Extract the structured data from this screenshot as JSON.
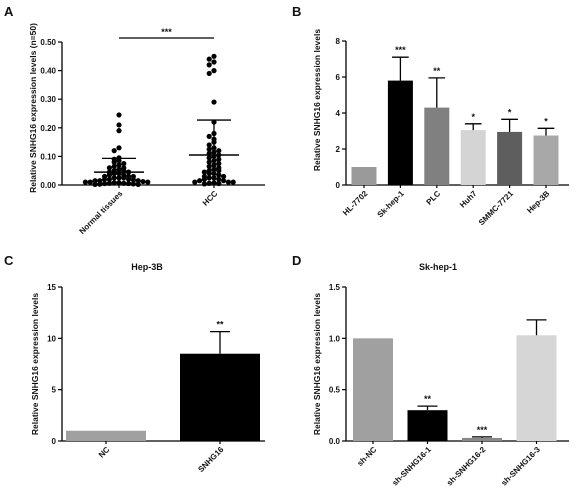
{
  "figure": {
    "panels": [
      "A",
      "B",
      "C",
      "D"
    ]
  },
  "chart_data": [
    {
      "type": "scatter",
      "panel": "A",
      "title": "",
      "ylabel": "Relative SNHG16 expression levels (n=50)",
      "ylim": [
        0,
        0.5
      ],
      "yticks": [
        "0.00",
        "0.10",
        "0.20",
        "0.30",
        "0.40",
        "0.50"
      ],
      "ytick_values": [
        0,
        0.1,
        0.2,
        0.3,
        0.4,
        0.5
      ],
      "categories": [
        "Normal tissues",
        "HCC"
      ],
      "summary": [
        {
          "mean": 0.045,
          "sd": 0.048
        },
        {
          "mean": 0.105,
          "sd": 0.122
        }
      ],
      "points": [
        [
          0.245,
          0.21,
          0.19,
          0.13,
          0.12,
          0.095,
          0.09,
          0.085,
          0.08,
          0.075,
          0.07,
          0.065,
          0.06,
          0.06,
          0.055,
          0.05,
          0.05,
          0.045,
          0.045,
          0.04,
          0.04,
          0.035,
          0.035,
          0.03,
          0.03,
          0.03,
          0.025,
          0.025,
          0.025,
          0.02,
          0.02,
          0.02,
          0.018,
          0.015,
          0.015,
          0.015,
          0.012,
          0.01,
          0.01,
          0.01,
          0.008,
          0.008,
          0.006,
          0.006,
          0.005,
          0.005,
          0.004,
          0.003,
          0.002,
          0.002
        ],
        [
          0.45,
          0.44,
          0.43,
          0.42,
          0.4,
          0.39,
          0.29,
          0.22,
          0.18,
          0.17,
          0.16,
          0.15,
          0.14,
          0.13,
          0.125,
          0.12,
          0.115,
          0.11,
          0.105,
          0.1,
          0.095,
          0.09,
          0.085,
          0.08,
          0.075,
          0.07,
          0.065,
          0.06,
          0.055,
          0.05,
          0.05,
          0.045,
          0.04,
          0.04,
          0.035,
          0.03,
          0.03,
          0.025,
          0.025,
          0.02,
          0.02,
          0.015,
          0.015,
          0.01,
          0.01,
          0.01,
          0.008,
          0.006,
          0.005,
          0.004
        ]
      ],
      "significance": "***"
    },
    {
      "type": "bar",
      "panel": "B",
      "title": "",
      "ylabel": "Relative SNHG16 expression levels",
      "ylim": [
        0,
        8
      ],
      "yticks": [
        "0",
        "2",
        "4",
        "6",
        "8"
      ],
      "ytick_values": [
        0,
        2,
        4,
        6,
        8
      ],
      "categories": [
        "HL-7702",
        "Sk-hep-1",
        "PLC",
        "Huh7",
        "SMMC-7721",
        "Hep-3B"
      ],
      "values": [
        1.0,
        5.8,
        4.3,
        3.05,
        2.95,
        2.75
      ],
      "errors": [
        0,
        1.3,
        1.65,
        0.35,
        0.7,
        0.4
      ],
      "colors": [
        "#9a9a9a",
        "#000000",
        "#808080",
        "#d4d4d4",
        "#5e5e5e",
        "#a8a8a8"
      ],
      "annotations": [
        "",
        "***",
        "**",
        "*",
        "*",
        "*"
      ]
    },
    {
      "type": "bar",
      "panel": "C",
      "title": "Hep-3B",
      "ylabel": "Relative SNHG16 expression levels",
      "ylim": [
        0,
        15
      ],
      "yticks": [
        "0",
        "5",
        "10",
        "15"
      ],
      "ytick_values": [
        0,
        5,
        10,
        15
      ],
      "categories": [
        "NC",
        "SNHG16"
      ],
      "values": [
        1.0,
        8.5
      ],
      "errors": [
        0,
        2.15
      ],
      "colors": [
        "#a0a0a0",
        "#000000"
      ],
      "annotations": [
        "",
        "**"
      ]
    },
    {
      "type": "bar",
      "panel": "D",
      "title": "Sk-hep-1",
      "ylabel": "Relative SNHG16 expression levels",
      "ylim": [
        0,
        1.5
      ],
      "yticks": [
        "0.0",
        "0.5",
        "1.0",
        "1.5"
      ],
      "ytick_values": [
        0,
        0.5,
        1.0,
        1.5
      ],
      "categories": [
        "sh-NC",
        "sh-SNHG16-1",
        "sh-SNHG16-2",
        "sh-SNHG16-3"
      ],
      "values": [
        1.0,
        0.3,
        0.03,
        1.03
      ],
      "errors": [
        0,
        0.04,
        0.01,
        0.15
      ],
      "colors": [
        "#a0a0a0",
        "#000000",
        "#888888",
        "#d6d6d6"
      ],
      "annotations": [
        "",
        "**",
        "***",
        ""
      ]
    }
  ]
}
